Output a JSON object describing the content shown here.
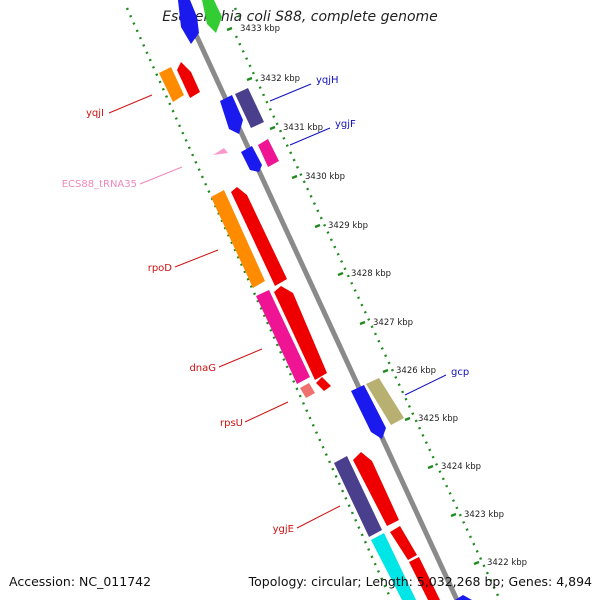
{
  "title": "Escherichia coli S88, complete genome",
  "footer": {
    "accession": "Accession: NC_011742",
    "summary": "Topology: circular; Length: 5,032,268 bp; Genes: 4,894"
  },
  "colors": {
    "backbone": "#8a8a8a",
    "track_dots": "#1f8a1f",
    "label_red": "#d01010",
    "label_blue": "#1010c0",
    "label_pink": "#ee88bb"
  },
  "ticks": [
    "3433 kbp",
    "3432 kbp",
    "3431 kbp",
    "3430 kbp",
    "3429 kbp",
    "3428 kbp",
    "3427 kbp",
    "3426 kbp",
    "3425 kbp",
    "3424 kbp",
    "3423 kbp",
    "3422 kbp"
  ],
  "gene_labels": [
    {
      "name": "yqjH",
      "color": "blue"
    },
    {
      "name": "ygjF",
      "color": "blue"
    },
    {
      "name": "yqjI",
      "color": "red"
    },
    {
      "name": "ECS88_tRNA35",
      "color": "pink"
    },
    {
      "name": "rpoD",
      "color": "red"
    },
    {
      "name": "dnaG",
      "color": "red"
    },
    {
      "name": "rpsU",
      "color": "red"
    },
    {
      "name": "gcp",
      "color": "blue"
    },
    {
      "name": "ygjE",
      "color": "red"
    }
  ]
}
